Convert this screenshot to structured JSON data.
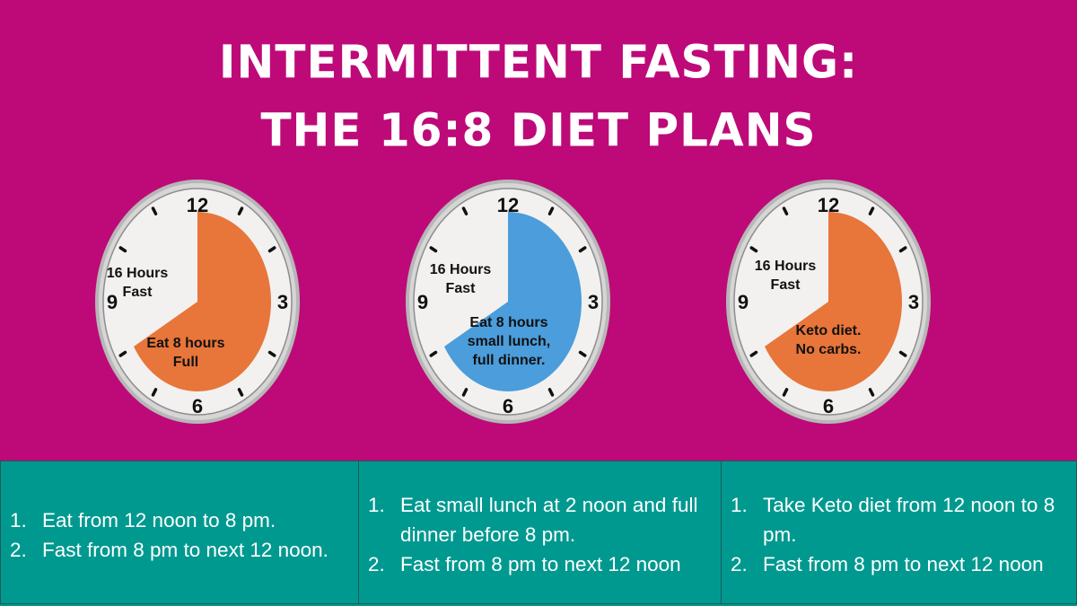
{
  "title": {
    "line1": "INTERMITTENT FASTING:",
    "line2": "THE 16:8 DIET PLANS"
  },
  "colors": {
    "background": "#bd0a78",
    "panel": "#009990",
    "eat_orange": "#e8753a",
    "eat_blue": "#4b9ddb",
    "clock_face": "#f3f1ef",
    "clock_rim": "#b7b7b7"
  },
  "clock_numbers": [
    "12",
    "3",
    "6",
    "9"
  ],
  "clocks": [
    {
      "fast_label": [
        "16 Hours",
        "Fast"
      ],
      "eat_label": [
        "Eat 8 hours",
        "Full"
      ],
      "eat_color": "#e8753a",
      "eat_from_hour": 12,
      "eat_to_hour": 8
    },
    {
      "fast_label": [
        "16 Hours",
        "Fast"
      ],
      "eat_label": [
        "Eat 8 hours",
        "small lunch,",
        "full dinner."
      ],
      "eat_color": "#4b9ddb",
      "eat_from_hour": 12,
      "eat_to_hour": 8
    },
    {
      "fast_label": [
        "16 Hours",
        "Fast"
      ],
      "eat_label": [
        "Keto diet.",
        "No carbs."
      ],
      "eat_color": "#e8753a",
      "eat_from_hour": 12,
      "eat_to_hour": 8
    }
  ],
  "plans": [
    {
      "items": [
        {
          "num": "1.",
          "text": "Eat from 12 noon to 8 pm."
        },
        {
          "num": "2.",
          "text": "Fast from 8 pm to next 12 noon."
        }
      ]
    },
    {
      "items": [
        {
          "num": "1.",
          "text": "Eat small lunch at 2 noon and full dinner before 8 pm."
        },
        {
          "num": "2.",
          "text": "Fast from 8 pm to next 12 noon"
        }
      ]
    },
    {
      "items": [
        {
          "num": "1.",
          "text": "Take Keto diet from 12 noon to 8 pm."
        },
        {
          "num": "2.",
          "text": "Fast from 8 pm to next 12 noon"
        }
      ]
    }
  ]
}
